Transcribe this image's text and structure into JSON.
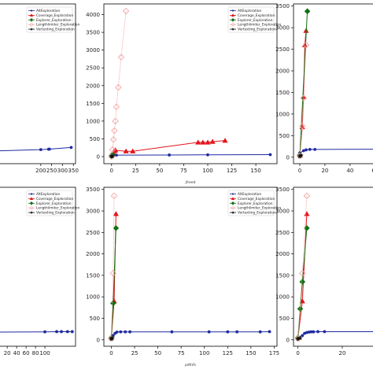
{
  "colors": {
    "AltExploration": "#1f2aa0",
    "Coverage_Exploration": "#e3141c",
    "Explorer_Exploration": "#127012",
    "Lengthlimiter_Exploration": "#f2a6a6",
    "Vertexting_Exploration": "#111111"
  },
  "chart_data": [
    {
      "type": "line",
      "xlabel": "",
      "legend": "top-right",
      "xlim": [
        -2,
        360
      ],
      "ylim": [
        -150,
        3600
      ],
      "grid": false,
      "xticks": [
        "200",
        "250",
        "300",
        "350"
      ],
      "xtick_values": [
        200,
        250,
        300,
        350
      ],
      "yticks": [],
      "legend_entries": [
        "AltExploration",
        "Coverage_Exploration",
        "Explorer_Exploration",
        "Lengthlimiter_Exploration",
        "Vertexting_Exploration"
      ],
      "series": [
        {
          "key": "AltExploration",
          "marker": "circle",
          "points": [
            [
              0,
              150
            ],
            [
              200,
              180
            ],
            [
              236,
              190
            ],
            [
              240,
              192
            ],
            [
              340,
              230
            ]
          ]
        }
      ]
    },
    {
      "type": "line",
      "xlabel": "jfreed",
      "legend": "top-right",
      "xlim": [
        -8,
        172
      ],
      "ylim": [
        -200,
        4300
      ],
      "grid": false,
      "xticks": [
        "0",
        "25",
        "50",
        "75",
        "100",
        "125",
        "150"
      ],
      "xtick_values": [
        0,
        25,
        50,
        75,
        100,
        125,
        150
      ],
      "yticks": [
        "0",
        "500",
        "1000",
        "1500",
        "2000",
        "2500",
        "3000",
        "3500",
        "4000"
      ],
      "ytick_values": [
        0,
        500,
        1000,
        1500,
        2000,
        2500,
        3000,
        3500,
        4000
      ],
      "legend_entries": [
        "AltExploration",
        "Coverage_Exploration",
        "Explorer_Exploration",
        "Lengthlimiter_Exploration",
        "Vertexting_Exploration"
      ],
      "series": [
        {
          "key": "AltExploration",
          "marker": "circle",
          "points": [
            [
              0,
              20
            ],
            [
              2,
              30
            ],
            [
              5,
              40
            ],
            [
              60,
              45
            ],
            [
              100,
              50
            ],
            [
              165,
              55
            ]
          ]
        },
        {
          "key": "Coverage_Exploration",
          "marker": "triangle",
          "points": [
            [
              0,
              40
            ],
            [
              2,
              100
            ],
            [
              3,
              160
            ],
            [
              4,
              180
            ],
            [
              15,
              150
            ],
            [
              22,
              150
            ],
            [
              90,
              400
            ],
            [
              95,
              400
            ],
            [
              100,
              400
            ],
            [
              105,
              420
            ],
            [
              118,
              450
            ]
          ]
        },
        {
          "key": "Explorer_Exploration",
          "marker": "diamond",
          "points": [
            [
              0,
              20
            ],
            [
              1,
              60
            ]
          ]
        },
        {
          "key": "Lengthlimiter_Exploration",
          "marker": "diamond-open",
          "points": [
            [
              0,
              0
            ],
            [
              1,
              200
            ],
            [
              2,
              480
            ],
            [
              3,
              730
            ],
            [
              4,
              1000
            ],
            [
              5,
              1400
            ],
            [
              7,
              1950
            ],
            [
              10,
              2800
            ],
            [
              15,
              4100
            ]
          ]
        },
        {
          "key": "Vertexting_Exploration",
          "marker": "star",
          "points": [
            [
              0,
              10
            ],
            [
              1,
              15
            ]
          ]
        }
      ]
    },
    {
      "type": "line",
      "xlabel": "",
      "legend": "top-right",
      "xlim": [
        -5,
        62
      ],
      "ylim": [
        -150,
        3550
      ],
      "grid": false,
      "xticks": [
        "0",
        "20",
        "40",
        "60"
      ],
      "xtick_values": [
        0,
        20,
        40,
        60
      ],
      "yticks": [
        "0",
        "500",
        "1000",
        "1500",
        "2000",
        "2500",
        "3000",
        "3500"
      ],
      "ytick_values": [
        0,
        500,
        1000,
        1500,
        2000,
        2500,
        3000,
        3500
      ],
      "legend_entries": [],
      "series": [
        {
          "key": "AltExploration",
          "marker": "circle",
          "points": [
            [
              0,
              100
            ],
            [
              3,
              150
            ],
            [
              5,
              170
            ],
            [
              8,
              180
            ],
            [
              12,
              180
            ],
            [
              60,
              185
            ]
          ]
        },
        {
          "key": "Coverage_Exploration",
          "marker": "triangle",
          "points": [
            [
              0,
              50
            ],
            [
              2,
              700
            ],
            [
              3,
              1400
            ],
            [
              4,
              2600
            ],
            [
              5,
              2930
            ]
          ]
        },
        {
          "key": "Explorer_Exploration",
          "marker": "diamond",
          "points": [
            [
              0,
              50
            ],
            [
              6,
              3380
            ]
          ]
        },
        {
          "key": "Lengthlimiter_Exploration",
          "marker": "diamond-open",
          "points": [
            [
              0,
              30
            ],
            [
              2,
              720
            ],
            [
              3,
              1370
            ],
            [
              5,
              2600
            ]
          ]
        },
        {
          "key": "Vertexting_Exploration",
          "marker": "star",
          "points": [
            [
              0,
              20
            ],
            [
              1,
              40
            ]
          ]
        }
      ]
    },
    {
      "type": "line",
      "xlabel": "",
      "legend": "top-right",
      "xlim": [
        -2,
        165
      ],
      "ylim": [
        -150,
        3550
      ],
      "grid": false,
      "xticks": [
        "0",
        "20",
        "40",
        "60",
        "80",
        "100"
      ],
      "xtick_values": [
        0,
        20,
        40,
        60,
        80,
        100
      ],
      "yticks": [],
      "legend_entries": [
        "AltExploration",
        "Coverage_Exploration",
        "Explorer_Exploration",
        "Lengthlimiter_Exploration",
        "Vertexting_Exploration"
      ],
      "series": [
        {
          "key": "AltExploration",
          "marker": "circle",
          "points": [
            [
              0,
              180
            ],
            [
              100,
              185
            ],
            [
              125,
              190
            ],
            [
              135,
              190
            ],
            [
              148,
              190
            ],
            [
              158,
              190
            ]
          ]
        }
      ]
    },
    {
      "type": "line",
      "xlabel": "pdfnfs",
      "legend": "top-right",
      "xlim": [
        -8,
        178
      ],
      "ylim": [
        -150,
        3550
      ],
      "grid": false,
      "xticks": [
        "0",
        "25",
        "50",
        "75",
        "100",
        "125",
        "150",
        "175"
      ],
      "xtick_values": [
        0,
        25,
        50,
        75,
        100,
        125,
        150,
        175
      ],
      "yticks": [
        "0",
        "500",
        "1000",
        "1500",
        "2000",
        "2500",
        "3000",
        "3500"
      ],
      "ytick_values": [
        0,
        500,
        1000,
        1500,
        2000,
        2500,
        3000,
        3500
      ],
      "legend_entries": [
        "AltExploration",
        "Coverage_Exploration",
        "Explorer_Exploration",
        "Lengthlimiter_Exploration",
        "Vertexting_Exploration"
      ],
      "series": [
        {
          "key": "AltExploration",
          "marker": "circle",
          "points": [
            [
              0,
              30
            ],
            [
              2,
              100
            ],
            [
              4,
              150
            ],
            [
              6,
              180
            ],
            [
              10,
              185
            ],
            [
              15,
              185
            ],
            [
              20,
              185
            ],
            [
              65,
              185
            ],
            [
              105,
              185
            ],
            [
              125,
              185
            ],
            [
              135,
              185
            ],
            [
              160,
              185
            ],
            [
              170,
              190
            ]
          ]
        },
        {
          "key": "Coverage_Exploration",
          "marker": "triangle",
          "points": [
            [
              0,
              50
            ],
            [
              3,
              900
            ],
            [
              5,
              2930
            ]
          ]
        },
        {
          "key": "Explorer_Exploration",
          "marker": "diamond",
          "points": [
            [
              0,
              50
            ],
            [
              2,
              850
            ],
            [
              5,
              2600
            ]
          ]
        },
        {
          "key": "Lengthlimiter_Exploration",
          "marker": "diamond-open",
          "points": [
            [
              0,
              30
            ],
            [
              2,
              1550
            ],
            [
              3,
              3350
            ]
          ]
        },
        {
          "key": "Vertexting_Exploration",
          "marker": "star",
          "points": [
            [
              0,
              20
            ],
            [
              1,
              40
            ]
          ]
        }
      ]
    },
    {
      "type": "line",
      "xlabel": "",
      "legend": "top-right",
      "xlim": [
        -2,
        36
      ],
      "ylim": [
        -150,
        3550
      ],
      "grid": false,
      "xticks": [
        "0",
        "20"
      ],
      "xtick_values": [
        0,
        20
      ],
      "yticks": [
        "0",
        "500",
        "1000",
        "1500",
        "2000",
        "2500",
        "3000",
        "3500"
      ],
      "ytick_values": [
        0,
        500,
        1000,
        1500,
        2000,
        2500,
        3000,
        3500
      ],
      "legend_entries": [],
      "series": [
        {
          "key": "AltExploration",
          "marker": "circle",
          "points": [
            [
              0,
              60
            ],
            [
              2,
              100
            ],
            [
              3,
              150
            ],
            [
              4,
              170
            ],
            [
              5,
              180
            ],
            [
              6,
              185
            ],
            [
              7,
              185
            ],
            [
              9,
              190
            ],
            [
              12,
              190
            ],
            [
              35,
              190
            ]
          ]
        },
        {
          "key": "Coverage_Exploration",
          "marker": "triangle",
          "points": [
            [
              0,
              50
            ],
            [
              2,
              900
            ],
            [
              4,
              2930
            ]
          ]
        },
        {
          "key": "Explorer_Exploration",
          "marker": "diamond",
          "points": [
            [
              0,
              50
            ],
            [
              1,
              720
            ],
            [
              2,
              1350
            ],
            [
              4,
              2600
            ]
          ]
        },
        {
          "key": "Lengthlimiter_Exploration",
          "marker": "diamond-open",
          "points": [
            [
              0,
              30
            ],
            [
              2,
              1550
            ],
            [
              4,
              3350
            ]
          ]
        },
        {
          "key": "Vertexting_Exploration",
          "marker": "star",
          "points": [
            [
              0,
              20
            ],
            [
              1,
              40
            ]
          ]
        }
      ]
    }
  ]
}
